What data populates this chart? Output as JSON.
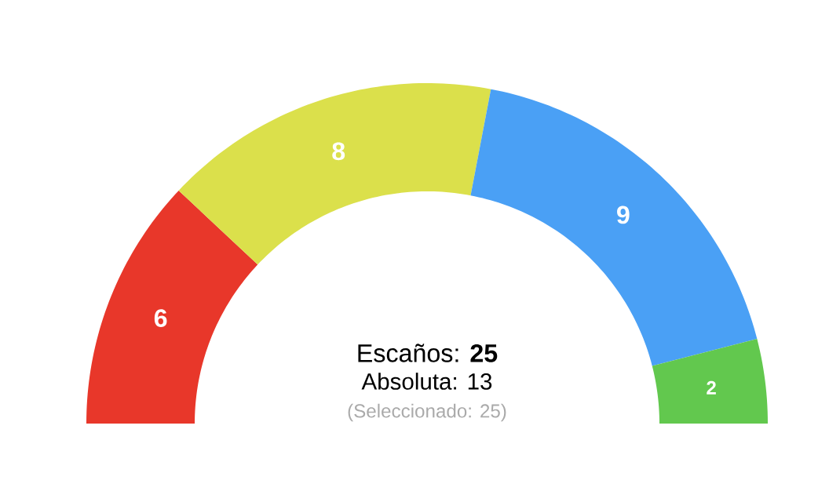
{
  "chart_data": {
    "type": "donut",
    "categories": [
      null,
      null,
      null,
      null
    ],
    "values": [
      6,
      8,
      9,
      2
    ],
    "colors": [
      "#e8372a",
      "#dbe04b",
      "#4aa0f5",
      "#62c84e"
    ],
    "data_labels": true,
    "annotations": [
      "Escaños: **25**",
      "Absoluta: 13",
      "(Seleccionado: 25)"
    ]
  }
}
